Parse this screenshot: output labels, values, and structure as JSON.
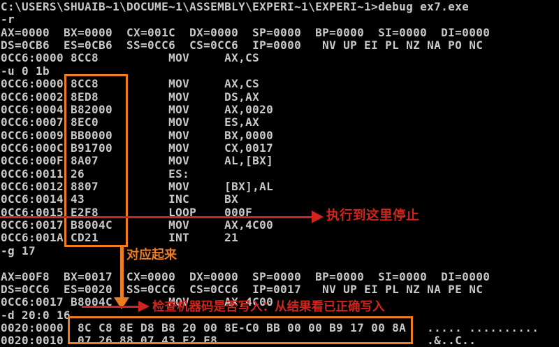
{
  "terminal": {
    "lines": [
      "C:\\USERS\\SHUAIB~1\\DOCUME~1\\ASSEMBLY\\EXPERI~1\\EXPERI~1>debug ex7.exe",
      "-r",
      "AX=0000  BX=0000  CX=001C  DX=0000  SP=0000  BP=0000  SI=0000  DI=0000",
      "DS=0CB6  ES=0CB6  SS=0CC6  CS=0CC6  IP=0000   NV UP EI PL NZ NA PO NC",
      "0CC6:0000 8CC8          MOV     AX,CS",
      "-u 0 1b",
      "0CC6:0000 8CC8          MOV     AX,CS",
      "0CC6:0002 8ED8          MOV     DS,AX",
      "0CC6:0004 B82000        MOV     AX,0020",
      "0CC6:0007 8EC0          MOV     ES,AX",
      "0CC6:0009 BB0000        MOV     BX,0000",
      "0CC6:000C B91700        MOV     CX,0017",
      "0CC6:000F 8A07          MOV     AL,[BX]",
      "0CC6:0011 26            ES:",
      "0CC6:0012 8807          MOV     [BX],AL",
      "0CC6:0014 43            INC     BX",
      "0CC6:0015 E2F8          LOOP    000F",
      "0CC6:0017 B8004C        MOV     AX,4C00",
      "0CC6:001A CD21          INT     21",
      "-g 17",
      "",
      "AX=00F8  BX=0017  CX=0000  DX=0000  SP=0000  BP=0000  SI=0000  DI=0000",
      "DS=0CC6  ES=0020  SS=0CC6  CS=0CC6  IP=0017   NV UP EI PL NZ NA PE NC",
      "0CC6:0017 B8004C        MOV     AX,4C00",
      "-d 20:0 16",
      "0020:0000  8C C8 8E D8 B8 20 00 8E-C0 BB 00 00 B9 17 00 8A   ..... ..........",
      "0020:0010  07 26 88 07 43 E2 F8                              .&..C.."
    ]
  },
  "annotations": {
    "correspond_label": "对应起来",
    "stop_label": "执行到这里停止",
    "check_label": "检查机器码是否写入：从结果看已正确写入"
  },
  "colors": {
    "background": "#000000",
    "terminal_text": "#c9c9c9",
    "highlight_orange": "#ee7c20",
    "annotation_red": "#d2241e"
  }
}
